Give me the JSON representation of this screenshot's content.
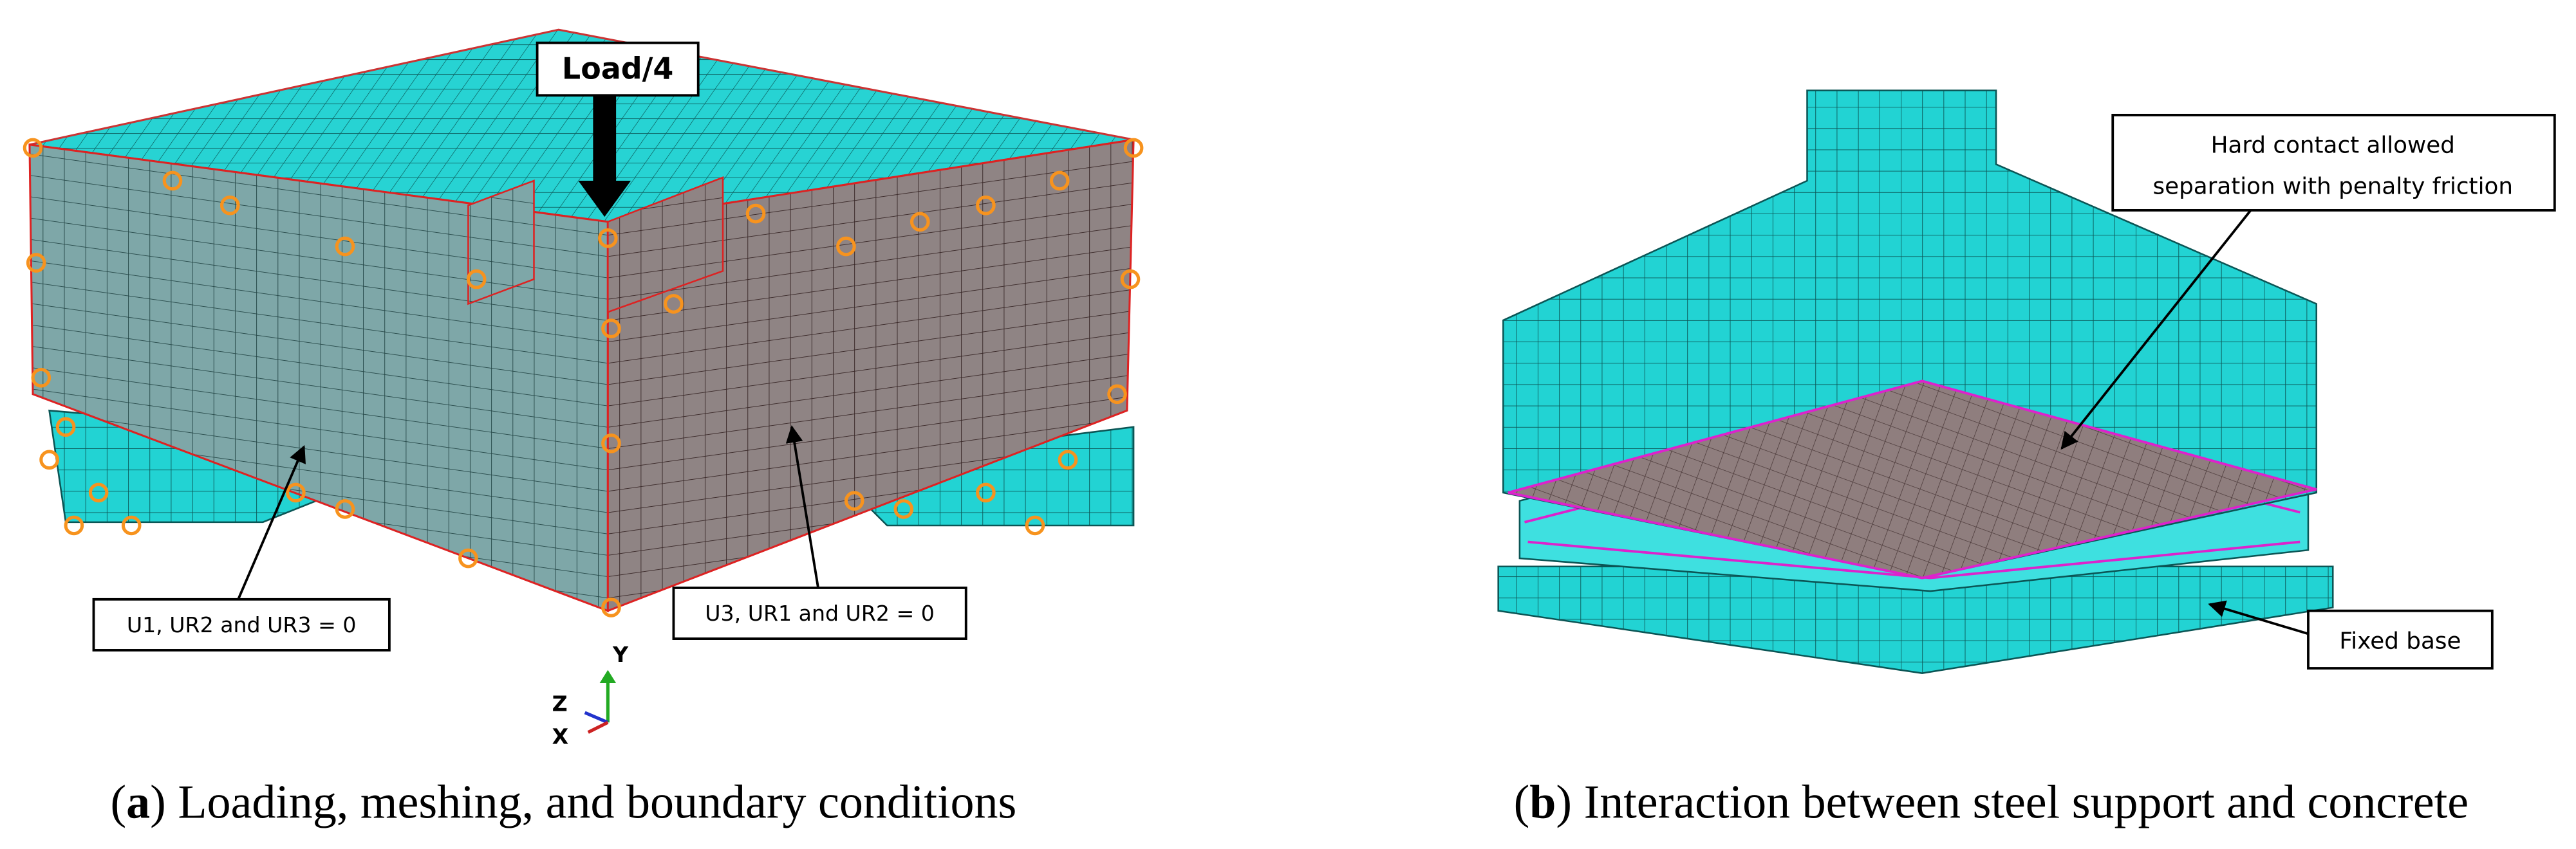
{
  "panels": [
    {
      "caption": {
        "open": "(",
        "label": "a",
        "text": ") Loading, meshing, and boundary conditions"
      },
      "load_label": "Load/4",
      "callouts": [
        "U1, UR2 and UR3 = 0",
        "U3, UR1 and UR2 = 0"
      ],
      "axes": {
        "y": "Y",
        "z": "Z",
        "x": "X"
      }
    },
    {
      "caption": {
        "open": "(",
        "label": "b",
        "text": ") Interaction between steel support and concrete"
      },
      "callouts": [
        [
          "Hard contact allowed",
          "separation with penalty friction"
        ],
        [
          "Fixed base"
        ]
      ]
    }
  ]
}
